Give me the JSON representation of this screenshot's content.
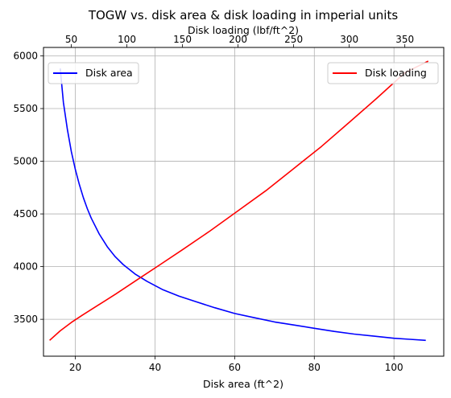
{
  "chart_data": {
    "type": "line",
    "title": "TOGW vs. disk area & disk loading in imperial units",
    "xlabel": "Disk area (ft^2)",
    "x2label": "Disk loading (lbf/ft^2)",
    "ylabel": "",
    "xlim": [
      12,
      112.5
    ],
    "x2lim": [
      25,
      385
    ],
    "ylim": [
      3150,
      6080
    ],
    "xticks": [
      20,
      40,
      60,
      80,
      100
    ],
    "x2ticks": [
      50,
      100,
      150,
      200,
      250,
      300,
      350
    ],
    "yticks": [
      3500,
      4000,
      4500,
      5000,
      5500,
      6000
    ],
    "grid": true,
    "series": [
      {
        "name": "Disk area",
        "axis": "bottom",
        "color": "#0000ff",
        "legend": "top-left",
        "x": [
          16.2,
          17,
          18,
          19,
          20,
          21,
          22,
          23,
          24,
          26,
          28,
          30,
          32,
          35,
          38,
          42,
          46,
          50,
          55,
          60,
          65,
          70,
          75,
          80,
          85,
          90,
          95,
          100,
          104,
          108
        ],
        "y": [
          5880,
          5560,
          5300,
          5090,
          4920,
          4780,
          4655,
          4550,
          4460,
          4310,
          4190,
          4095,
          4020,
          3930,
          3860,
          3780,
          3720,
          3670,
          3610,
          3555,
          3515,
          3475,
          3445,
          3415,
          3385,
          3360,
          3340,
          3320,
          3310,
          3300
        ]
      },
      {
        "name": "Disk loading",
        "axis": "top",
        "color": "#ff0000",
        "legend": "top-right",
        "x": [
          30.5,
          40,
          50,
          60,
          75,
          90,
          110,
          130,
          150,
          175,
          200,
          225,
          250,
          275,
          300,
          325,
          350,
          371
        ],
        "y": [
          3300,
          3390,
          3470,
          3540,
          3640,
          3740,
          3880,
          4020,
          4160,
          4340,
          4530,
          4720,
          4930,
          5140,
          5370,
          5600,
          5840,
          5950
        ]
      }
    ]
  }
}
